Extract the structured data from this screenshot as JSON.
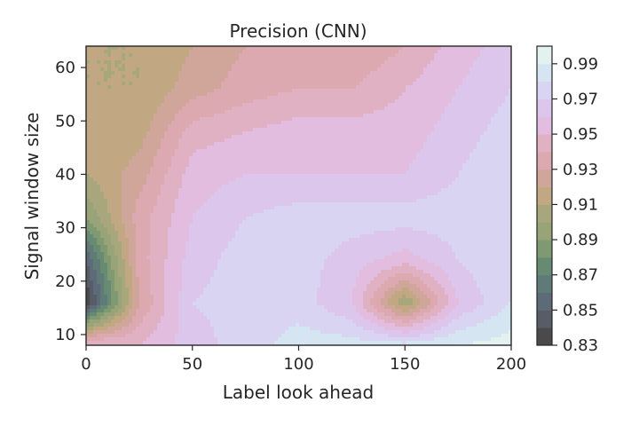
{
  "chart_data": {
    "type": "contour",
    "title": "Precision (CNN)",
    "xlabel": "Label look ahead",
    "ylabel": "Signal window size",
    "xlim": [
      0,
      200
    ],
    "ylim": [
      8,
      64
    ],
    "x_ticks": [
      0,
      50,
      100,
      150,
      200
    ],
    "y_ticks": [
      10,
      20,
      30,
      40,
      50,
      60
    ],
    "x": [
      0,
      25,
      50,
      75,
      100,
      125,
      150,
      175,
      200
    ],
    "y": [
      8,
      16,
      24,
      32,
      40,
      48,
      56,
      64
    ],
    "z": [
      [
        0.955,
        0.95,
        0.965,
        0.975,
        0.985,
        0.985,
        0.985,
        0.99,
        0.995
      ],
      [
        0.83,
        0.93,
        0.97,
        0.975,
        0.975,
        0.96,
        0.9,
        0.96,
        0.98
      ],
      [
        0.85,
        0.935,
        0.965,
        0.975,
        0.975,
        0.965,
        0.955,
        0.97,
        0.98
      ],
      [
        0.89,
        0.935,
        0.96,
        0.97,
        0.975,
        0.975,
        0.975,
        0.975,
        0.98
      ],
      [
        0.91,
        0.925,
        0.955,
        0.96,
        0.96,
        0.96,
        0.96,
        0.97,
        0.98
      ],
      [
        0.91,
        0.915,
        0.945,
        0.95,
        0.955,
        0.955,
        0.955,
        0.965,
        0.975
      ],
      [
        0.91,
        0.91,
        0.925,
        0.935,
        0.94,
        0.94,
        0.95,
        0.96,
        0.97
      ],
      [
        0.91,
        0.91,
        0.92,
        0.93,
        0.93,
        0.93,
        0.94,
        0.955,
        0.965
      ]
    ],
    "colorbar": {
      "levels": [
        0.83,
        0.84,
        0.85,
        0.86,
        0.87,
        0.88,
        0.89,
        0.9,
        0.91,
        0.92,
        0.93,
        0.94,
        0.95,
        0.96,
        0.97,
        0.98,
        0.99,
        1.0
      ],
      "tick_labels": [
        "0.83",
        "0.85",
        "0.87",
        "0.89",
        "0.91",
        "0.93",
        "0.95",
        "0.97",
        "0.99"
      ],
      "colors": [
        "#4a4a4a",
        "#575c66",
        "#5d6b78",
        "#5f7a77",
        "#678a72",
        "#7f9a72",
        "#98a478",
        "#a8a67c",
        "#c2a882",
        "#d1a69a",
        "#dda9b0",
        "#e0b1c3",
        "#e2bde0",
        "#dcc6ec",
        "#d8d4f2",
        "#d5e5f1",
        "#e3f1ef",
        "#f4f9f3"
      ]
    }
  }
}
